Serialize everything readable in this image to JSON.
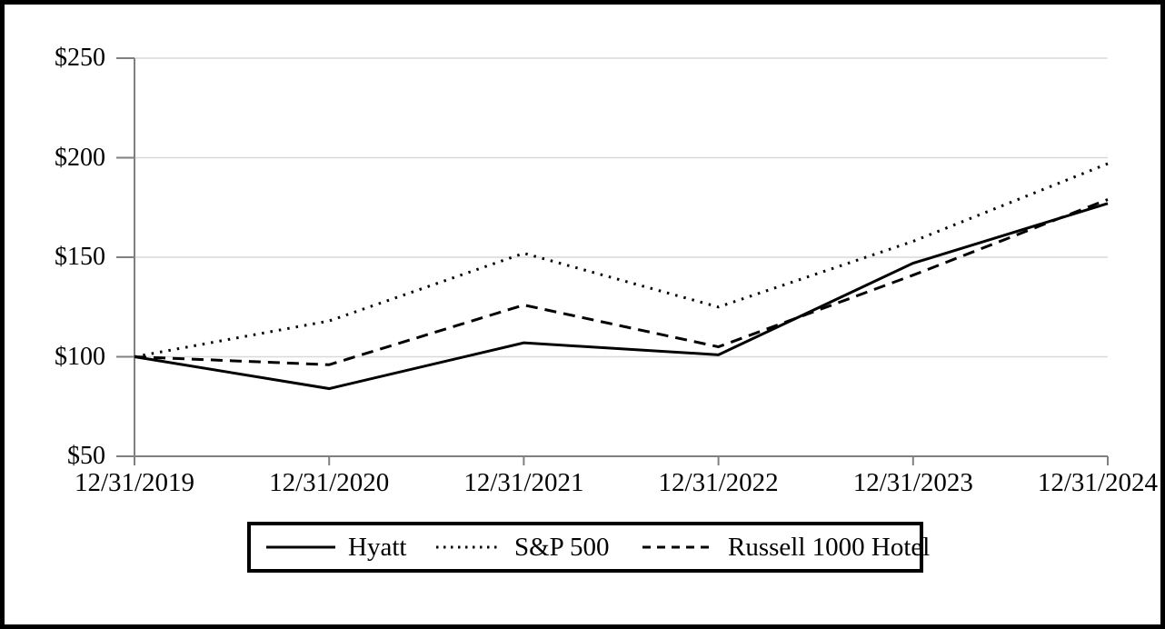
{
  "chart_data": {
    "type": "line",
    "title": "",
    "xlabel": "",
    "ylabel": "",
    "x_labels": [
      "12/31/2019",
      "12/31/2020",
      "12/31/2021",
      "12/31/2022",
      "12/31/2023",
      "12/31/2024"
    ],
    "y_ticks": [
      250,
      200,
      150,
      100,
      50
    ],
    "y_tick_labels": [
      "$250",
      "$200",
      "$150",
      "$100",
      "$50"
    ],
    "ylim": [
      50,
      250
    ],
    "grid": true,
    "legend_position": "bottom-center",
    "series": [
      {
        "name": "Hyatt",
        "style": "solid",
        "color": "#000000",
        "values": [
          100,
          84,
          107,
          101,
          147,
          177
        ]
      },
      {
        "name": "S&P 500",
        "style": "dotted",
        "color": "#000000",
        "values": [
          100,
          118,
          152,
          125,
          158,
          197
        ]
      },
      {
        "name": "Russell 1000 Hotel",
        "style": "dashed",
        "color": "#000000",
        "values": [
          100,
          96,
          126,
          105,
          141,
          179
        ]
      }
    ],
    "colors": {
      "axis": "#808080",
      "gridline": "#D9D9D9",
      "frame_border": "#000000",
      "background": "#FFFFFF"
    }
  }
}
